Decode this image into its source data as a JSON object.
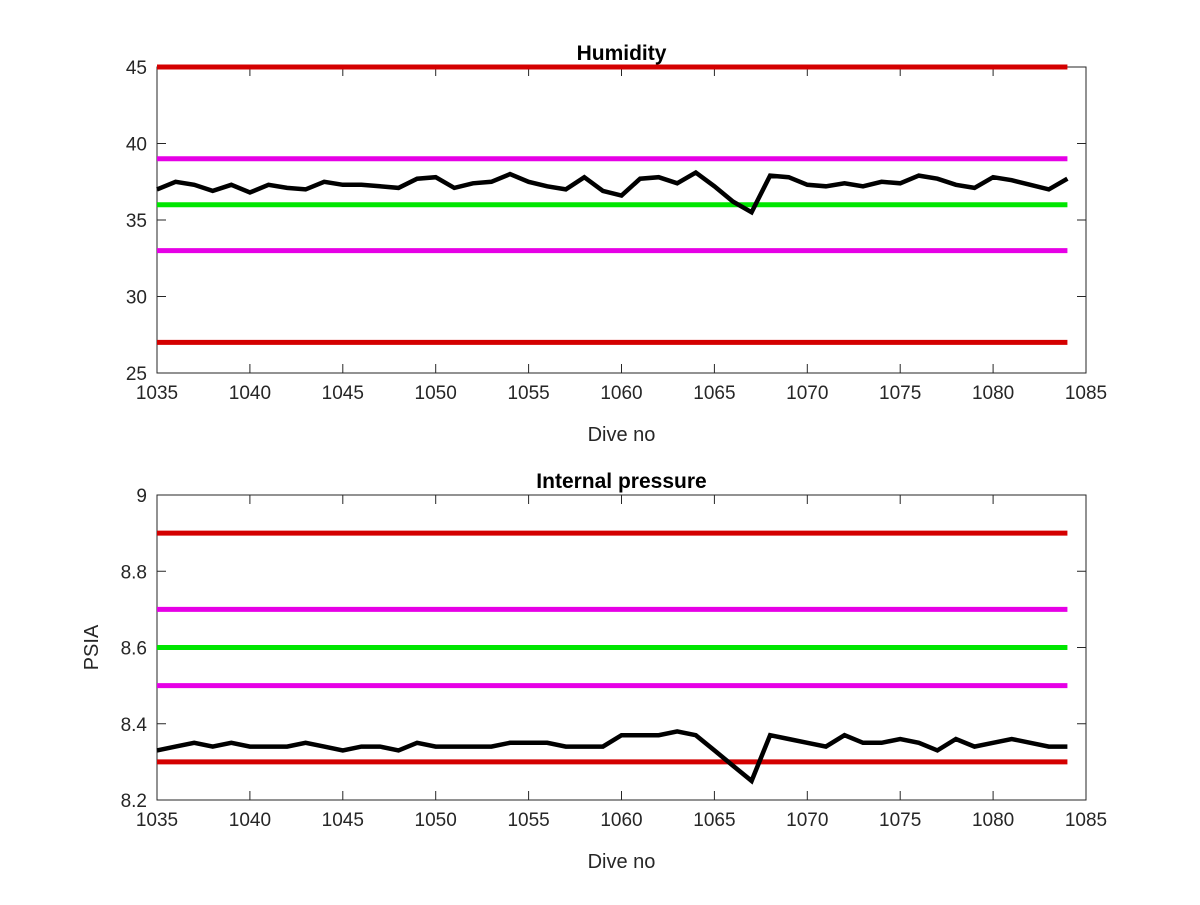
{
  "chart_data": [
    {
      "type": "line",
      "title": "Humidity",
      "xlabel": "Dive no",
      "ylabel": "",
      "xlim": [
        1035,
        1085
      ],
      "ylim": [
        25,
        45
      ],
      "xticks": [
        1035,
        1040,
        1045,
        1050,
        1055,
        1060,
        1065,
        1070,
        1075,
        1080,
        1085
      ],
      "yticks": [
        25,
        30,
        35,
        40,
        45
      ],
      "grid": false,
      "limit_lines": [
        {
          "y": 45,
          "color": "#d40000"
        },
        {
          "y": 39,
          "color": "#e600e6"
        },
        {
          "y": 36,
          "color": "#00e600"
        },
        {
          "y": 33,
          "color": "#e600e6"
        },
        {
          "y": 27,
          "color": "#d40000"
        }
      ],
      "series": [
        {
          "color": "#000000",
          "x": [
            1035,
            1036,
            1037,
            1038,
            1039,
            1040,
            1041,
            1042,
            1043,
            1044,
            1045,
            1046,
            1047,
            1048,
            1049,
            1050,
            1051,
            1052,
            1053,
            1054,
            1055,
            1056,
            1057,
            1058,
            1059,
            1060,
            1061,
            1062,
            1063,
            1064,
            1065,
            1066,
            1067,
            1068,
            1069,
            1070,
            1071,
            1072,
            1073,
            1074,
            1075,
            1076,
            1077,
            1078,
            1079,
            1080,
            1081,
            1082,
            1083,
            1084
          ],
          "values": [
            37.0,
            37.5,
            37.3,
            36.9,
            37.3,
            36.8,
            37.3,
            37.1,
            37.0,
            37.5,
            37.3,
            37.3,
            37.2,
            37.1,
            37.7,
            37.8,
            37.1,
            37.4,
            37.5,
            38.0,
            37.5,
            37.2,
            37.0,
            37.8,
            36.9,
            36.6,
            37.7,
            37.8,
            37.4,
            38.1,
            37.2,
            36.2,
            35.5,
            37.9,
            37.8,
            37.3,
            37.2,
            37.4,
            37.2,
            37.5,
            37.4,
            37.9,
            37.7,
            37.3,
            37.1,
            37.8,
            37.6,
            37.3,
            37.0,
            37.7
          ]
        }
      ]
    },
    {
      "type": "line",
      "title": "Internal pressure",
      "xlabel": "Dive no",
      "ylabel": "PSIA",
      "xlim": [
        1035,
        1085
      ],
      "ylim": [
        8.2,
        9.0
      ],
      "xticks": [
        1035,
        1040,
        1045,
        1050,
        1055,
        1060,
        1065,
        1070,
        1075,
        1080,
        1085
      ],
      "yticks": [
        8.2,
        8.4,
        8.6,
        8.8,
        9
      ],
      "grid": false,
      "limit_lines": [
        {
          "y": 8.9,
          "color": "#d40000"
        },
        {
          "y": 8.7,
          "color": "#e600e6"
        },
        {
          "y": 8.6,
          "color": "#00e600"
        },
        {
          "y": 8.5,
          "color": "#e600e6"
        },
        {
          "y": 8.3,
          "color": "#d40000"
        }
      ],
      "series": [
        {
          "color": "#000000",
          "x": [
            1035,
            1036,
            1037,
            1038,
            1039,
            1040,
            1041,
            1042,
            1043,
            1044,
            1045,
            1046,
            1047,
            1048,
            1049,
            1050,
            1051,
            1052,
            1053,
            1054,
            1055,
            1056,
            1057,
            1058,
            1059,
            1060,
            1061,
            1062,
            1063,
            1064,
            1065,
            1066,
            1067,
            1068,
            1069,
            1070,
            1071,
            1072,
            1073,
            1074,
            1075,
            1076,
            1077,
            1078,
            1079,
            1080,
            1081,
            1082,
            1083,
            1084
          ],
          "values": [
            8.33,
            8.34,
            8.35,
            8.34,
            8.35,
            8.34,
            8.34,
            8.34,
            8.35,
            8.34,
            8.33,
            8.34,
            8.34,
            8.33,
            8.35,
            8.34,
            8.34,
            8.34,
            8.34,
            8.35,
            8.35,
            8.35,
            8.34,
            8.34,
            8.34,
            8.37,
            8.37,
            8.37,
            8.38,
            8.37,
            8.33,
            8.29,
            8.25,
            8.37,
            8.36,
            8.35,
            8.34,
            8.37,
            8.35,
            8.35,
            8.36,
            8.35,
            8.33,
            8.36,
            8.34,
            8.35,
            8.36,
            8.35,
            8.34,
            8.34
          ]
        }
      ]
    }
  ]
}
